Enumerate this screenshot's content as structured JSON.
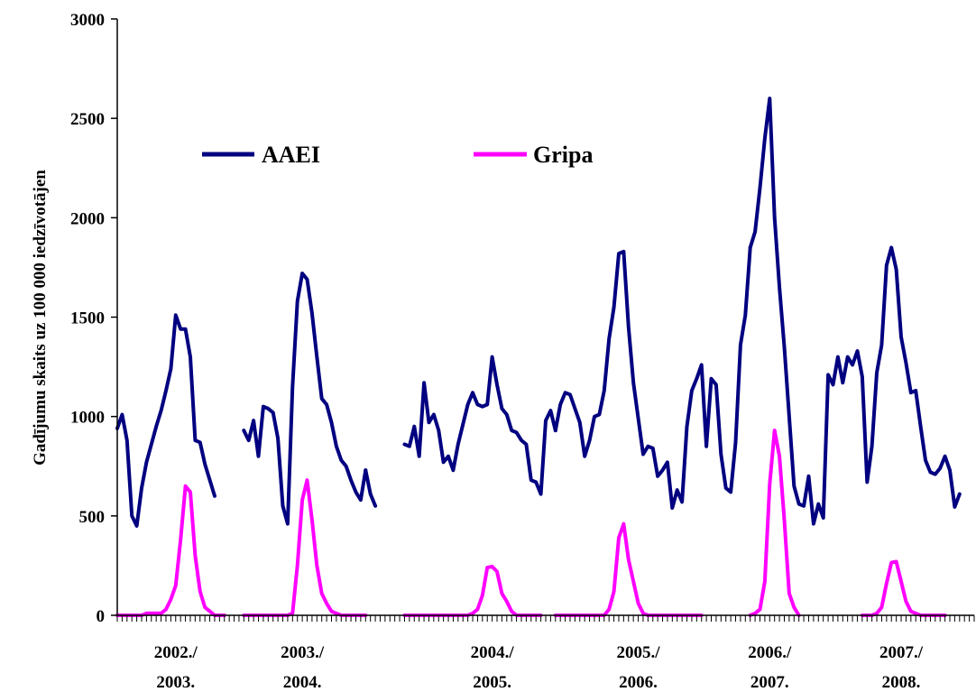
{
  "chart_data": {
    "type": "line",
    "title": "",
    "ylabel": "Gadījumu skaits uz 100 000 iedzīvotājen",
    "xlabel": "",
    "ylim": [
      0,
      3000
    ],
    "yticks": [
      "0",
      "500",
      "1000",
      "1500",
      "2000",
      "2500",
      "3000"
    ],
    "ytick_values": [
      0,
      500,
      1000,
      1500,
      2000,
      2500,
      3000
    ],
    "season_labels": [
      {
        "line1": "2002./",
        "line2": "2003."
      },
      {
        "line1": "2003./",
        "line2": "2004."
      },
      {
        "line1": "2004./",
        "line2": "2005."
      },
      {
        "line1": "2005./",
        "line2": "2006."
      },
      {
        "line1": "2006./",
        "line2": "2007."
      },
      {
        "line1": "2007./",
        "line2": "2008."
      }
    ],
    "x_unit": "week index",
    "legend_position": "top-left, inside plot",
    "grid": false,
    "series": [
      {
        "name": "AAEI",
        "color": "#000080",
        "segments": [
          {
            "x": [
              0,
              1,
              2,
              3,
              4,
              5,
              6,
              7,
              8,
              9,
              10,
              11,
              12,
              13,
              14,
              15,
              16,
              17,
              18,
              19,
              20,
              21,
              22
            ],
            "y": [
              940,
              1010,
              880,
              500,
              450,
              640,
              770,
              860,
              950,
              1030,
              1130,
              1240,
              1510,
              1440,
              1440,
              1300,
              880,
              870,
              760,
              680,
              600,
              null,
              null
            ]
          },
          {
            "x": [
              26,
              27,
              28,
              29,
              30,
              31,
              32,
              33,
              34,
              35,
              36,
              37,
              38,
              39,
              40,
              41,
              42,
              43,
              44,
              45,
              46,
              47,
              48,
              49,
              50,
              51
            ],
            "y": [
              930,
              880,
              980,
              800,
              1050,
              1040,
              1020,
              890,
              550,
              460,
              1150,
              1580,
              1720,
              1690,
              1520,
              1300,
              1090,
              1060,
              970,
              850,
              780,
              750,
              680,
              620,
              580,
              730
            ]
          },
          {
            "x": [
              51,
              52,
              53
            ],
            "y": [
              730,
              610,
              550
            ]
          },
          {
            "x": [
              59,
              60,
              61,
              62,
              63,
              64,
              65,
              66,
              67,
              68,
              69,
              70,
              71,
              72,
              73,
              74,
              75,
              76,
              77,
              78,
              79,
              80,
              81,
              82,
              83,
              84,
              85,
              86,
              87,
              88,
              89,
              90
            ],
            "y": [
              860,
              850,
              950,
              800,
              1170,
              970,
              1010,
              930,
              770,
              800,
              730,
              860,
              960,
              1060,
              1120,
              1060,
              1050,
              1060,
              1300,
              1160,
              1040,
              1010,
              930,
              920,
              880,
              860,
              680,
              670,
              610,
              980,
              1030,
              930
            ]
          },
          {
            "x": [
              90,
              91,
              92,
              93,
              94,
              95,
              96,
              97,
              98,
              99,
              100,
              101,
              102,
              103,
              104,
              105,
              106,
              107,
              108,
              109,
              110,
              111,
              112,
              113,
              114,
              115,
              116,
              117,
              118,
              119,
              120,
              121,
              122,
              123,
              124,
              125,
              126,
              127,
              128,
              129,
              130
            ],
            "y": [
              930,
              1060,
              1120,
              1110,
              1040,
              970,
              800,
              880,
              1000,
              1010,
              1130,
              1390,
              1550,
              1820,
              1830,
              1450,
              1170,
              990,
              810,
              850,
              840,
              700,
              730,
              770,
              540,
              630,
              570,
              950,
              1130,
              1190,
              1260,
              850,
              1190,
              1160,
              810,
              640,
              620,
              870,
              1360,
              1510,
              1850
            ]
          },
          {
            "x": [
              130,
              131,
              132,
              133,
              134,
              135,
              136,
              137,
              138,
              139,
              140,
              141,
              142,
              143,
              144,
              145,
              146,
              147,
              148,
              149,
              150,
              151,
              152,
              153,
              154,
              155,
              156,
              157,
              158,
              159,
              160,
              161,
              162,
              163,
              164,
              165,
              166,
              167,
              168,
              169,
              170,
              171,
              172,
              173,
              174,
              175,
              176
            ],
            "y": [
              1850,
              1930,
              2150,
              2400,
              2600,
              2000,
              1650,
              1350,
              1000,
              650,
              560,
              550,
              700,
              460,
              560,
              490,
              1210,
              1160,
              1300,
              1170,
              1300,
              1260,
              1330,
              1200,
              670,
              850,
              1220,
              1360,
              1760,
              1850,
              1740,
              1400,
              1270,
              1120,
              1130,
              950,
              780,
              720,
              710,
              740,
              800,
              730,
              545,
              610,
              null,
              null,
              null
            ]
          }
        ]
      },
      {
        "name": "Gripa",
        "color": "#ff00ff",
        "segments": [
          {
            "x": [
              0,
              1,
              2,
              3,
              4,
              5,
              6,
              7,
              8,
              9,
              10,
              11,
              12,
              13,
              14,
              15,
              16,
              17,
              18,
              19,
              20,
              21,
              22
            ],
            "y": [
              0,
              0,
              0,
              0,
              0,
              0,
              10,
              10,
              10,
              10,
              30,
              80,
              150,
              380,
              650,
              620,
              300,
              120,
              40,
              20,
              0,
              0,
              0
            ]
          },
          {
            "x": [
              26,
              27,
              28,
              29,
              30,
              31,
              32,
              33,
              34,
              35,
              36,
              37,
              38,
              39,
              40,
              41,
              42,
              43,
              44,
              45,
              46,
              47,
              48,
              49,
              50,
              51
            ],
            "y": [
              0,
              0,
              0,
              0,
              0,
              0,
              0,
              0,
              0,
              0,
              10,
              250,
              580,
              680,
              480,
              250,
              110,
              60,
              20,
              10,
              0,
              0,
              0,
              0,
              0,
              0
            ]
          },
          {
            "x": [
              59,
              60,
              61,
              62,
              63,
              64,
              65,
              66,
              67,
              68,
              69,
              70,
              71,
              72,
              73,
              74,
              75,
              76,
              77,
              78,
              79,
              80,
              81,
              82,
              83,
              84,
              85,
              86,
              87
            ],
            "y": [
              0,
              0,
              0,
              0,
              0,
              0,
              0,
              0,
              0,
              0,
              0,
              0,
              0,
              0,
              10,
              30,
              100,
              240,
              245,
              220,
              110,
              70,
              20,
              0,
              0,
              0,
              0,
              0,
              0
            ]
          },
          {
            "x": [
              90,
              91,
              92,
              93,
              94,
              95,
              96,
              97,
              98,
              99,
              100,
              101,
              102,
              103,
              104,
              105,
              106,
              107,
              108,
              109,
              110,
              111,
              112,
              113,
              114,
              115,
              116,
              117,
              118,
              119,
              120
            ],
            "y": [
              0,
              0,
              0,
              0,
              0,
              0,
              0,
              0,
              0,
              0,
              0,
              30,
              120,
              390,
              460,
              280,
              170,
              60,
              10,
              0,
              0,
              0,
              0,
              0,
              0,
              0,
              0,
              0,
              0,
              0,
              0
            ]
          },
          {
            "x": [
              130,
              131,
              132,
              133,
              134,
              135,
              136,
              137,
              138,
              139,
              140
            ],
            "y": [
              0,
              10,
              30,
              170,
              660,
              930,
              800,
              480,
              110,
              40,
              0
            ]
          },
          {
            "x": [
              153,
              154,
              155,
              156,
              157,
              158,
              159,
              160,
              161,
              162,
              163,
              164,
              165,
              166,
              167,
              168,
              169,
              170
            ],
            "y": [
              0,
              0,
              0,
              10,
              40,
              160,
              265,
              270,
              170,
              70,
              20,
              10,
              0,
              0,
              0,
              0,
              0,
              0
            ]
          }
        ]
      }
    ]
  }
}
